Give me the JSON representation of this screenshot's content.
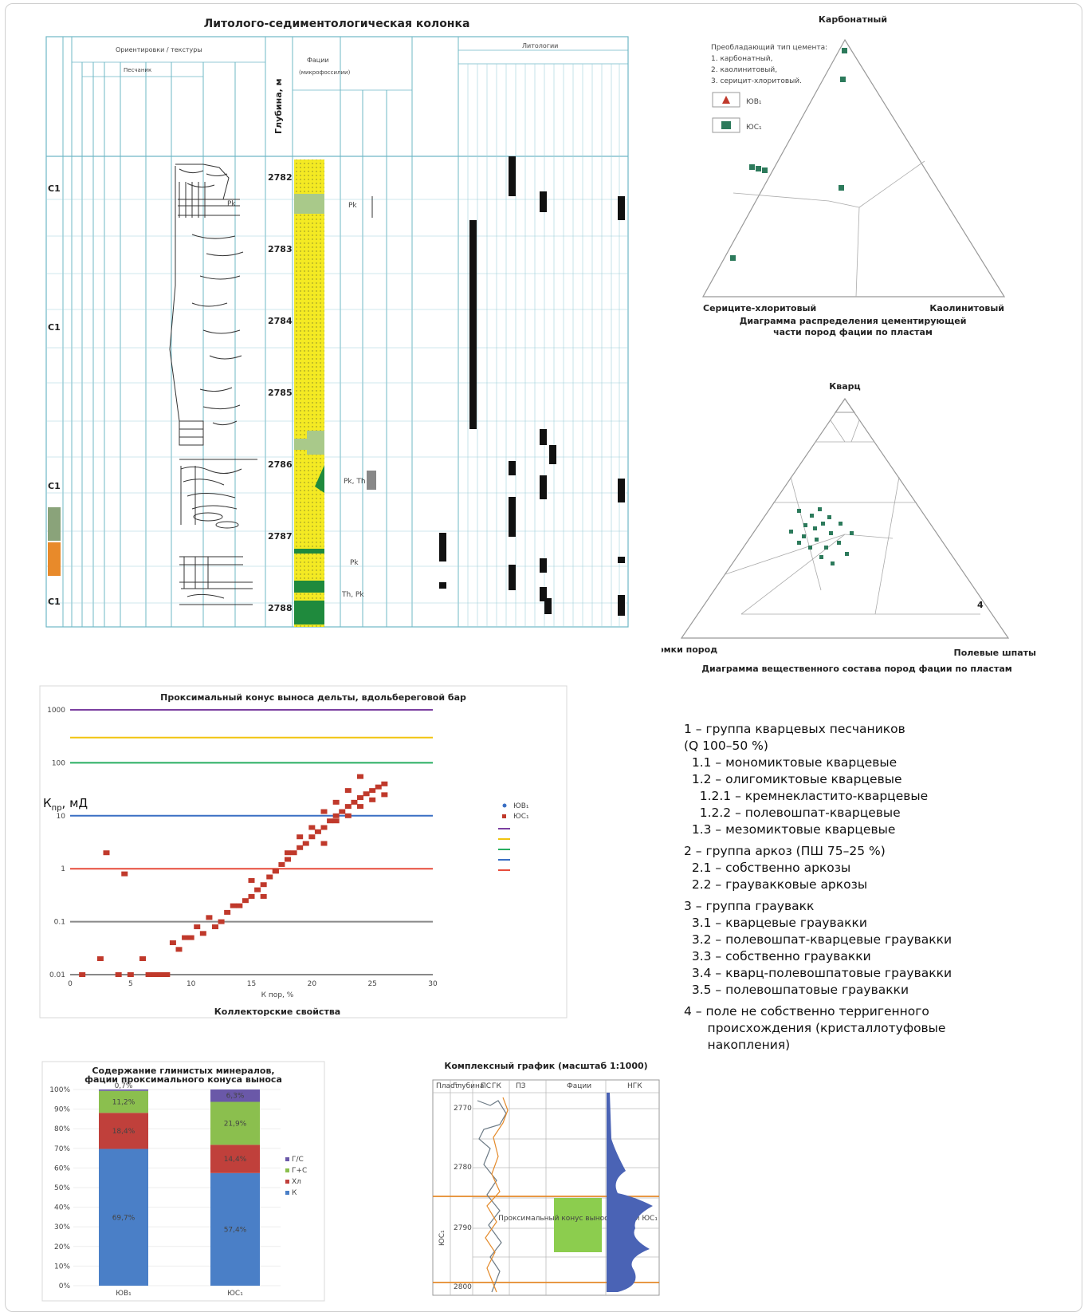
{
  "column": {
    "title": "Литолого-седиментологическая колонка",
    "depth_header": "Глубина, м",
    "depths": [
      "2782",
      "2783",
      "2784",
      "2785",
      "2786",
      "2787",
      "2788"
    ],
    "cement_labels": [
      "C1",
      "C1",
      "C1",
      "C1"
    ],
    "facies_marks": [
      "Pk",
      "Pk",
      "Pk, Th",
      "Pk",
      "Th, Pk"
    ]
  },
  "ternary_cement": {
    "apex_top": "Карбонатный",
    "apex_left": "Сериците-хлоритовый",
    "apex_right": "Каолинитовый",
    "caption_line1": "Диаграмма распределения цементирующей",
    "caption_line2": "части пород фации по пластам",
    "legend_title": "Преобладающий тип цемента:",
    "legend_items": [
      "1. карбонатный,",
      "2. каолинитовый,",
      "3. серицит-хлоритовый."
    ],
    "series": [
      "ЮВ₁",
      "ЮС₁"
    ]
  },
  "ternary_composition": {
    "apex_top": "Кварц",
    "apex_left": "Обломки пород",
    "apex_right": "Полевые шпаты",
    "caption": "Диаграмма вещественного состава пород фации по пластам",
    "right_mark": "4"
  },
  "legend": {
    "rows": [
      "1 – группа кварцевых песчаников",
      "(Q 100–50 %)",
      "  1.1 – мономиктовые кварцевые",
      "  1.2 – олигомиктовые кварцевые",
      "    1.2.1 – кремнекластито-кварцевые",
      "    1.2.2 – полевошпат-кварцевые",
      "  1.3 – мезомиктовые кварцевые",
      "",
      "2 – группа аркоз (ПШ 75–25 %)",
      "  2.1 – собственно аркозы",
      "  2.2 – граувакковые аркозы",
      "",
      "3 – группа граувакк",
      "  3.1 – кварцевые граувакки",
      "  3.2 – полевошпат-кварцевые граувакки",
      "  3.3 – собственно граувакки",
      "  3.4 – кварц-полевошпатовые граувакки",
      "  3.5 – полевошпатовые граувакки",
      "",
      "4 – поле не собственно терригенного",
      "      происхождения (кристаллотуфовые",
      "      накопления)"
    ]
  },
  "scatter": {
    "title": "Проксимальный конус выноса дельты, вдольбереговой бар",
    "xlabel": "К пор, %",
    "caption": "Коллекторские свойства",
    "ylabel_main": "К",
    "ylabel_sub": "пр",
    "ylabel_tail": ", мД",
    "y_ticks": [
      "1000",
      "100",
      "10",
      "1",
      "0.1",
      "0.01"
    ],
    "x_ticks": [
      "0",
      "5",
      "10",
      "15",
      "20",
      "25",
      "30"
    ],
    "legend_series": [
      "ЮВ₁",
      "ЮС₁"
    ],
    "colors": {
      "points": "#c0392b",
      "violet": "#7b3fa0",
      "yellow": "#f1c40f",
      "green": "#27ae60",
      "blue": "#3a6fc4",
      "red": "#e74c3c",
      "grey": "#888888"
    }
  },
  "chart_data": [
    {
      "type": "scatter",
      "title": "Проксимальный конус выноса дельты, вдольбереговой бар",
      "xlabel": "К пор, %",
      "ylabel": "Кпр, мД",
      "xlim": [
        0,
        30
      ],
      "ylim": [
        0.01,
        1000
      ],
      "yscale": "log",
      "hlines": [
        1000,
        300,
        100,
        10,
        1,
        0.1,
        0.01
      ],
      "x": [
        1,
        4,
        5,
        6.5,
        7,
        7.5,
        8,
        9,
        10,
        11,
        12,
        12.5,
        13,
        14,
        14.5,
        15,
        15.5,
        16,
        16.5,
        17,
        17.5,
        18,
        18.5,
        19,
        19.5,
        20,
        20.5,
        21,
        21.5,
        22,
        22.5,
        23,
        23.5,
        24,
        24.5,
        25,
        25.5,
        26,
        2.5,
        3,
        4.5,
        6,
        8.5,
        9.5,
        10.5,
        11.5,
        13.5,
        15,
        16,
        17,
        18,
        19,
        20,
        21,
        22,
        23,
        24,
        25,
        26,
        21,
        22,
        23,
        24
      ],
      "y": [
        0.01,
        0.01,
        0.01,
        0.01,
        0.01,
        0.01,
        0.01,
        0.03,
        0.05,
        0.06,
        0.08,
        0.1,
        0.15,
        0.2,
        0.25,
        0.3,
        0.4,
        0.5,
        0.7,
        0.9,
        1.2,
        1.5,
        2,
        2.5,
        3,
        4,
        5,
        6,
        8,
        10,
        12,
        15,
        18,
        22,
        26,
        30,
        35,
        40,
        0.02,
        2,
        0.8,
        0.02,
        0.04,
        0.05,
        0.08,
        0.12,
        0.2,
        0.6,
        0.3,
        0.9,
        2,
        4,
        6,
        3,
        8,
        10,
        15,
        20,
        25,
        12,
        18,
        30,
        55
      ],
      "series_names": [
        "ЮВ₁",
        "ЮС₁"
      ]
    },
    {
      "type": "bar",
      "title": "Содержание глинистых минералов, фации проксимального конуса выноса",
      "categories": [
        "ЮВ₁",
        "ЮС₁"
      ],
      "stacked": true,
      "series": [
        {
          "name": "К",
          "values": [
            69.7,
            57.4
          ]
        },
        {
          "name": "Хл",
          "values": [
            18.4,
            14.4
          ]
        },
        {
          "name": "Г+С",
          "values": [
            11.2,
            21.9
          ]
        },
        {
          "name": "Г/С",
          "values": [
            0.7,
            6.3
          ]
        }
      ],
      "ylim": [
        0,
        100
      ],
      "label_top": "0,7%",
      "colors": [
        "#4a7fc7",
        "#c0403b",
        "#8bbf4e",
        "#6a58a8"
      ]
    }
  ],
  "bars": {
    "title_line1": "Содержание глинистых минералов,",
    "title_line2": "фации проксимального конуса выноса",
    "y_ticks": [
      "100%",
      "90%",
      "80%",
      "70%",
      "60%",
      "50%",
      "40%",
      "30%",
      "20%",
      "10%",
      "0%"
    ],
    "inner_labels": [
      "69,7%",
      "18,4%",
      "11,2%",
      "57,4%",
      "14,4%",
      "21,9%",
      "6,3%"
    ],
    "top_label": "0,7%"
  },
  "complex": {
    "title": "Комплексный график (масштаб 1:1000)",
    "depths": [
      "2770",
      "2780",
      "2790",
      "2800"
    ],
    "headers": [
      "Пласт",
      "Глубина",
      "ПС",
      "ГК",
      "ПЗ",
      "Фации",
      "НГК"
    ],
    "facies_box": "Проксимальный конус выноса фации ЮС₁",
    "zone_label": "ЮС₁",
    "colors": {
      "fill": "#4a63b5",
      "facies": "#8ccd4e",
      "line_orange": "#e48a2a",
      "line_grey": "#6c7a85"
    }
  }
}
